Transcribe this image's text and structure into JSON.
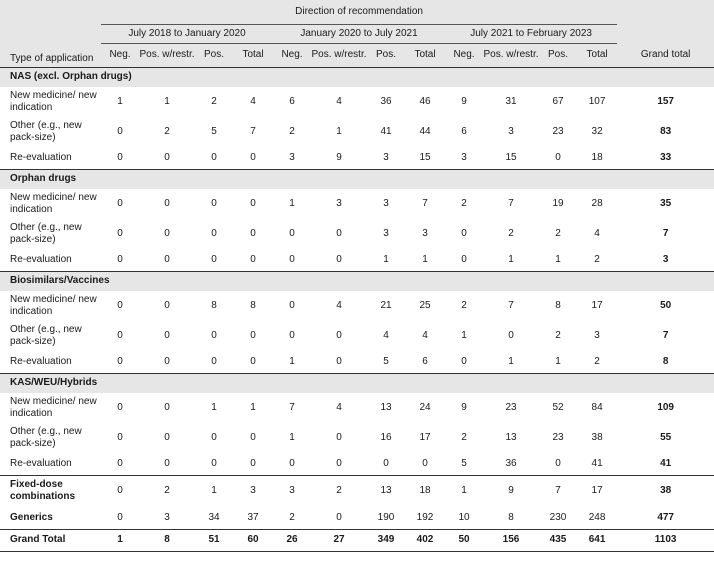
{
  "header": {
    "type_label": "Type of application",
    "direction_label": "Direction of recommendation",
    "periods": [
      "July 2018 to January 2020",
      "January 2020 to July 2021",
      "July 2021 to February 2023"
    ],
    "subcols": [
      "Neg.",
      "Pos. w/restr.",
      "Pos.",
      "Total"
    ],
    "grand_total_label": "Grand total"
  },
  "sections": [
    {
      "title": "NAS (excl. Orphan drugs)",
      "rows": [
        {
          "label": "New medicine/ new indication",
          "values": [
            "1",
            "1",
            "2",
            "4",
            "6",
            "4",
            "36",
            "46",
            "9",
            "31",
            "67",
            "107"
          ],
          "grand": "157"
        },
        {
          "label": "Other (e.g., new pack-size)",
          "values": [
            "0",
            "2",
            "5",
            "7",
            "2",
            "1",
            "41",
            "44",
            "6",
            "3",
            "23",
            "32"
          ],
          "grand": "83"
        },
        {
          "label": "Re-evaluation",
          "values": [
            "0",
            "0",
            "0",
            "0",
            "3",
            "9",
            "3",
            "15",
            "3",
            "15",
            "0",
            "18"
          ],
          "grand": "33"
        }
      ]
    },
    {
      "title": "Orphan drugs",
      "rows": [
        {
          "label": "New medicine/ new indication",
          "values": [
            "0",
            "0",
            "0",
            "0",
            "1",
            "3",
            "3",
            "7",
            "2",
            "7",
            "19",
            "28"
          ],
          "grand": "35"
        },
        {
          "label": "Other (e.g., new pack-size)",
          "values": [
            "0",
            "0",
            "0",
            "0",
            "0",
            "0",
            "3",
            "3",
            "0",
            "2",
            "2",
            "4"
          ],
          "grand": "7"
        },
        {
          "label": "Re-evaluation",
          "values": [
            "0",
            "0",
            "0",
            "0",
            "0",
            "0",
            "1",
            "1",
            "0",
            "1",
            "1",
            "2"
          ],
          "grand": "3"
        }
      ]
    },
    {
      "title": "Biosimilars/Vaccines",
      "rows": [
        {
          "label": "New medicine/ new indication",
          "values": [
            "0",
            "0",
            "8",
            "8",
            "0",
            "4",
            "21",
            "25",
            "2",
            "7",
            "8",
            "17"
          ],
          "grand": "50"
        },
        {
          "label": "Other (e.g., new pack-size)",
          "values": [
            "0",
            "0",
            "0",
            "0",
            "0",
            "0",
            "4",
            "4",
            "1",
            "0",
            "2",
            "3"
          ],
          "grand": "7"
        },
        {
          "label": "Re-evaluation",
          "values": [
            "0",
            "0",
            "0",
            "0",
            "1",
            "0",
            "5",
            "6",
            "0",
            "1",
            "1",
            "2"
          ],
          "grand": "8"
        }
      ]
    },
    {
      "title": "KAS/WEU/Hybrids",
      "rows": [
        {
          "label": "New medicine/ new indication",
          "values": [
            "0",
            "0",
            "1",
            "1",
            "7",
            "4",
            "13",
            "24",
            "9",
            "23",
            "52",
            "84"
          ],
          "grand": "109"
        },
        {
          "label": "Other (e.g., new pack-size)",
          "values": [
            "0",
            "0",
            "0",
            "0",
            "1",
            "0",
            "16",
            "17",
            "2",
            "13",
            "23",
            "38"
          ],
          "grand": "55"
        },
        {
          "label": "Re-evaluation",
          "values": [
            "0",
            "0",
            "0",
            "0",
            "0",
            "0",
            "0",
            "0",
            "5",
            "36",
            "0",
            "41"
          ],
          "grand": "41"
        }
      ]
    }
  ],
  "single_rows": [
    {
      "label": "Fixed-dose combinations",
      "values": [
        "0",
        "2",
        "1",
        "3",
        "3",
        "2",
        "13",
        "18",
        "1",
        "9",
        "7",
        "17"
      ],
      "grand": "38"
    },
    {
      "label": "Generics",
      "values": [
        "0",
        "3",
        "34",
        "37",
        "2",
        "0",
        "190",
        "192",
        "10",
        "8",
        "230",
        "248"
      ],
      "grand": "477"
    }
  ],
  "grand_total_row": {
    "label": "Grand Total",
    "values": [
      "1",
      "8",
      "51",
      "60",
      "26",
      "27",
      "349",
      "402",
      "50",
      "156",
      "435",
      "641"
    ],
    "grand": "1103"
  }
}
